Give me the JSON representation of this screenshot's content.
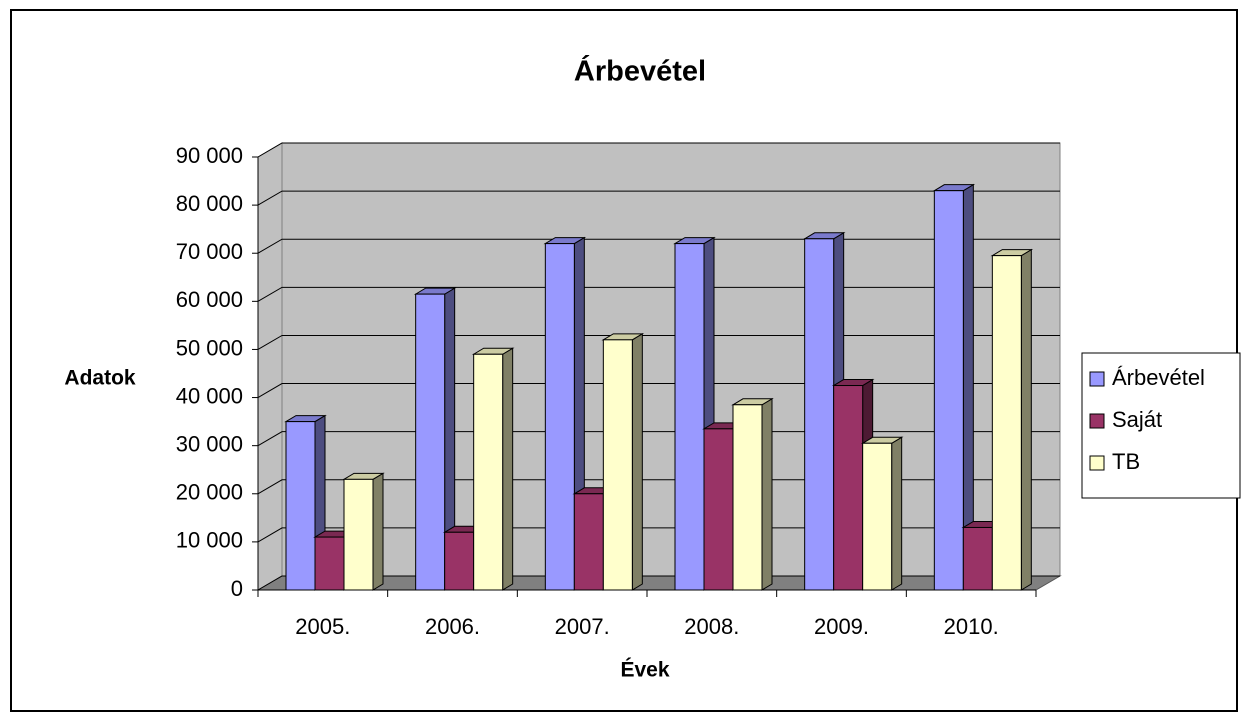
{
  "chart_data": {
    "type": "bar3d",
    "title": "Árbevétel",
    "xlabel": "Évek",
    "ylabel": "Adatok",
    "categories": [
      "2005.",
      "2006.",
      "2007.",
      "2008.",
      "2009.",
      "2010."
    ],
    "series": [
      {
        "name": "Árbevétel",
        "color": "#9999ff",
        "values": [
          35000,
          61500,
          72000,
          72000,
          73000,
          83000
        ]
      },
      {
        "name": "Saját",
        "color": "#993366",
        "values": [
          11000,
          12000,
          20000,
          33500,
          42500,
          13000
        ]
      },
      {
        "name": "TB",
        "color": "#ffffcc",
        "values": [
          23000,
          49000,
          52000,
          38500,
          30500,
          69500
        ]
      }
    ],
    "ylim": [
      0,
      90000
    ],
    "yticks": [
      0,
      {
        "value": 10000,
        "label": "10 000"
      },
      {
        "value": 20000,
        "label": "20 000"
      },
      {
        "value": 30000,
        "label": "30 000"
      },
      {
        "value": 40000,
        "label": "40 000"
      },
      {
        "value": 50000,
        "label": "50 000"
      },
      {
        "value": 60000,
        "label": "60 000"
      },
      {
        "value": 70000,
        "label": "70 000"
      },
      {
        "value": 80000,
        "label": "80 000"
      },
      {
        "value": 90000,
        "label": "90 000"
      }
    ],
    "grid": true,
    "legend": "right"
  }
}
